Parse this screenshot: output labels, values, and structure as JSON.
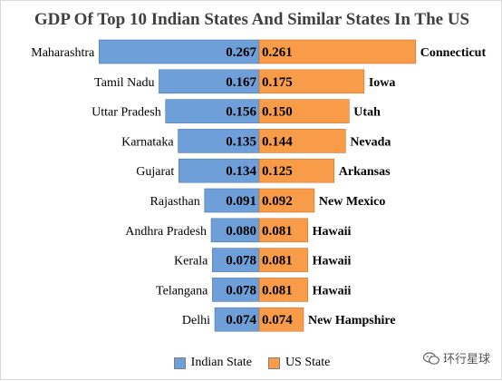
{
  "chart_data": {
    "type": "bar",
    "title": "GDP Of Top 10 Indian States And Similar States In The US",
    "categories": [
      "Maharashtra",
      "Tamil Nadu",
      "Uttar Pradesh",
      "Karnataka",
      "Gujarat",
      "Rajasthan",
      "Andhra Pradesh",
      "Kerala",
      "Telangana",
      "Delhi"
    ],
    "us_states": [
      "Connecticut",
      "Iowa",
      "Utah",
      "Nevada",
      "Arkansas",
      "New Mexico",
      "Hawaii",
      "Hawaii",
      "Hawaii",
      "New Hampshire"
    ],
    "series": [
      {
        "name": "Indian State",
        "values": [
          0.267,
          0.167,
          0.156,
          0.135,
          0.134,
          0.091,
          0.08,
          0.078,
          0.078,
          0.074
        ],
        "labels": [
          "0.267",
          "0.167",
          "0.156",
          "0.135",
          "0.134",
          "0.091",
          "0.080",
          "0.078",
          "0.078",
          "0.074"
        ],
        "color": "#6f9fd8"
      },
      {
        "name": "US State",
        "values": [
          0.261,
          0.175,
          0.15,
          0.144,
          0.125,
          0.092,
          0.081,
          0.081,
          0.081,
          0.074
        ],
        "labels": [
          "0.261",
          "0.175",
          "0.150",
          "0.144",
          "0.125",
          "0.092",
          "0.081",
          "0.081",
          "0.081",
          "0.074"
        ],
        "color": "#f89c4a"
      }
    ],
    "layout": "back-to-back horizontal bars",
    "legend_position": "bottom",
    "grid": false
  },
  "watermark": {
    "text": "环行星球",
    "icon": "wechat-icon"
  }
}
